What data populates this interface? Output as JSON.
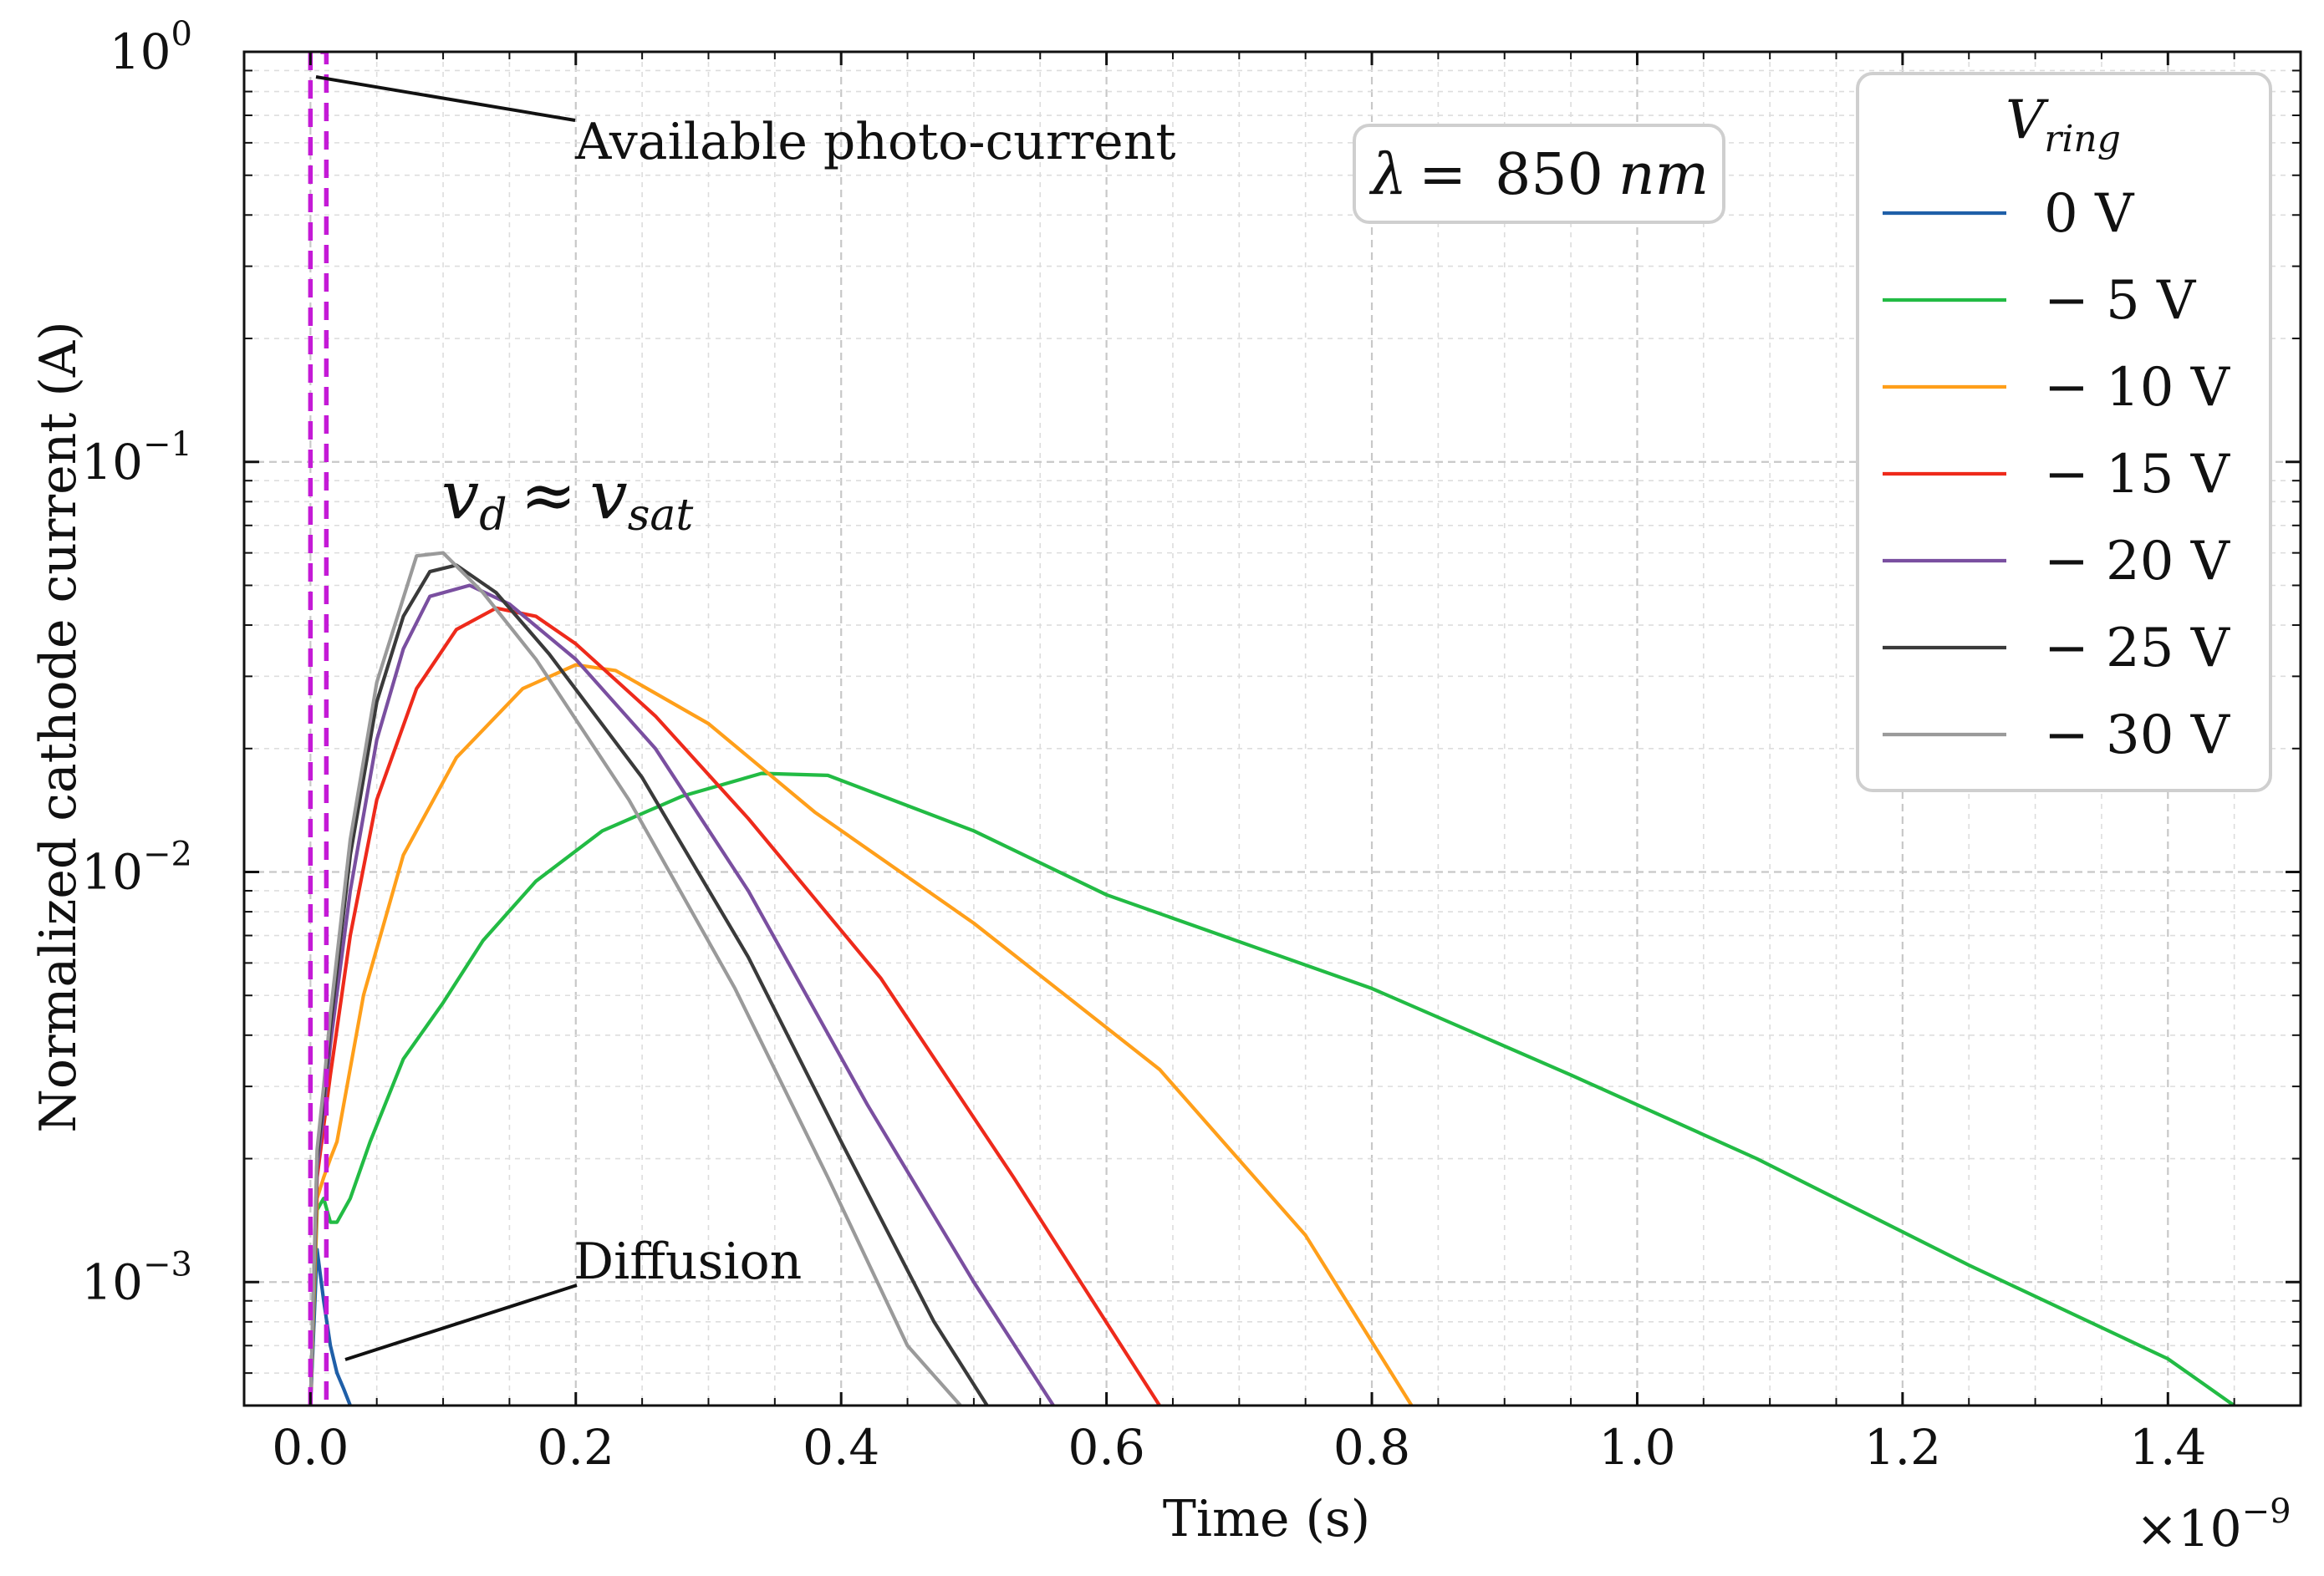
{
  "chart_data": {
    "type": "line",
    "title": "",
    "xlabel": "Time (s)",
    "ylabel": "Normalized cathode current (A)",
    "x_multiplier": "×10",
    "x_multiplier_exp": "−9",
    "xscale": "linear",
    "yscale": "log",
    "xlim": [
      -0.05,
      1.5
    ],
    "ylim": [
      0.0005,
      1.0
    ],
    "grid": true,
    "x_ticks": [
      0.0,
      0.2,
      0.4,
      0.6,
      0.8,
      1.0,
      1.2,
      1.4
    ],
    "x_tick_labels": [
      "0.0",
      "0.2",
      "0.4",
      "0.6",
      "0.8",
      "1.0",
      "1.2",
      "1.4"
    ],
    "y_ticks": [
      {
        "value": 1,
        "base": "10",
        "exp": "0"
      },
      {
        "value": 0.1,
        "base": "10",
        "exp": "−1"
      },
      {
        "value": 0.01,
        "base": "10",
        "exp": "−2"
      },
      {
        "value": 0.001,
        "base": "10",
        "exp": "−3"
      }
    ],
    "legend": {
      "title_main": "V",
      "title_sub": "ring",
      "placement": "top-right"
    },
    "series": [
      {
        "name": "0 V",
        "color": "#1f5fa8",
        "x": [
          0.0,
          0.005,
          0.01,
          0.015,
          0.02,
          0.025,
          0.03
        ],
        "y": [
          0.0005,
          0.0012,
          0.0009,
          0.0007,
          0.0006,
          0.00055,
          0.0005
        ]
      },
      {
        "name": "− 5 V",
        "color": "#22bb44",
        "x": [
          0.0,
          0.005,
          0.01,
          0.015,
          0.02,
          0.03,
          0.045,
          0.07,
          0.1,
          0.13,
          0.17,
          0.22,
          0.28,
          0.34,
          0.39,
          0.5,
          0.6,
          0.8,
          0.95,
          1.09,
          1.25,
          1.4,
          1.45
        ],
        "y": [
          0.0005,
          0.0015,
          0.0016,
          0.0014,
          0.0014,
          0.0016,
          0.0022,
          0.0035,
          0.0048,
          0.0068,
          0.0095,
          0.0126,
          0.0153,
          0.0174,
          0.0172,
          0.0126,
          0.0088,
          0.0052,
          0.0032,
          0.002,
          0.0011,
          0.00065,
          0.0005
        ]
      },
      {
        "name": "− 10 V",
        "color": "#ff9f1a",
        "x": [
          0.0,
          0.005,
          0.01,
          0.015,
          0.02,
          0.04,
          0.07,
          0.11,
          0.16,
          0.2,
          0.23,
          0.3,
          0.38,
          0.5,
          0.64,
          0.75,
          0.83
        ],
        "y": [
          0.0005,
          0.0016,
          0.0018,
          0.002,
          0.0022,
          0.005,
          0.011,
          0.019,
          0.028,
          0.032,
          0.031,
          0.023,
          0.014,
          0.0075,
          0.0033,
          0.0013,
          0.0005
        ]
      },
      {
        "name": "− 15 V",
        "color": "#ee2a1b",
        "x": [
          0.0,
          0.005,
          0.01,
          0.015,
          0.03,
          0.05,
          0.08,
          0.11,
          0.14,
          0.17,
          0.2,
          0.26,
          0.33,
          0.43,
          0.53,
          0.64
        ],
        "y": [
          0.0005,
          0.0018,
          0.0024,
          0.0032,
          0.007,
          0.015,
          0.028,
          0.039,
          0.044,
          0.042,
          0.036,
          0.024,
          0.0135,
          0.0055,
          0.0018,
          0.0005
        ]
      },
      {
        "name": "− 20 V",
        "color": "#7a4fa0",
        "x": [
          0.0,
          0.005,
          0.01,
          0.015,
          0.03,
          0.05,
          0.07,
          0.09,
          0.12,
          0.15,
          0.2,
          0.26,
          0.33,
          0.42,
          0.5,
          0.56
        ],
        "y": [
          0.0005,
          0.0019,
          0.0026,
          0.0038,
          0.009,
          0.021,
          0.035,
          0.047,
          0.05,
          0.045,
          0.033,
          0.02,
          0.009,
          0.0027,
          0.001,
          0.0005
        ]
      },
      {
        "name": "− 25 V",
        "color": "#3a3a3a",
        "x": [
          0.0,
          0.005,
          0.01,
          0.015,
          0.03,
          0.05,
          0.07,
          0.09,
          0.11,
          0.14,
          0.18,
          0.25,
          0.33,
          0.4,
          0.47,
          0.51
        ],
        "y": [
          0.0005,
          0.002,
          0.0028,
          0.0042,
          0.011,
          0.026,
          0.042,
          0.054,
          0.056,
          0.048,
          0.034,
          0.017,
          0.0062,
          0.0022,
          0.0008,
          0.0005
        ]
      },
      {
        "name": "− 30 V",
        "color": "#9a9a9a",
        "x": [
          0.0,
          0.005,
          0.01,
          0.015,
          0.03,
          0.05,
          0.08,
          0.1,
          0.13,
          0.17,
          0.24,
          0.32,
          0.39,
          0.45,
          0.49
        ],
        "y": [
          0.0005,
          0.0021,
          0.003,
          0.0045,
          0.012,
          0.029,
          0.059,
          0.06,
          0.048,
          0.033,
          0.015,
          0.0052,
          0.0018,
          0.0007,
          0.0005
        ]
      }
    ],
    "pulse": {
      "name": "Available photo-current",
      "color": "#c41ad6",
      "x": [
        0.0,
        0.012
      ],
      "y_top": 1.0
    },
    "annotations": {
      "photo_current": "Available photo-current",
      "diffusion": "Diffusion",
      "velocity_main": "v",
      "velocity_sub_left": "d",
      "velocity_approx": "≈",
      "velocity_right": "v",
      "velocity_sub_right": "sat",
      "lambda_symbol": "λ",
      "lambda_equals": "=",
      "lambda_value": "850",
      "lambda_unit": "nm"
    }
  }
}
